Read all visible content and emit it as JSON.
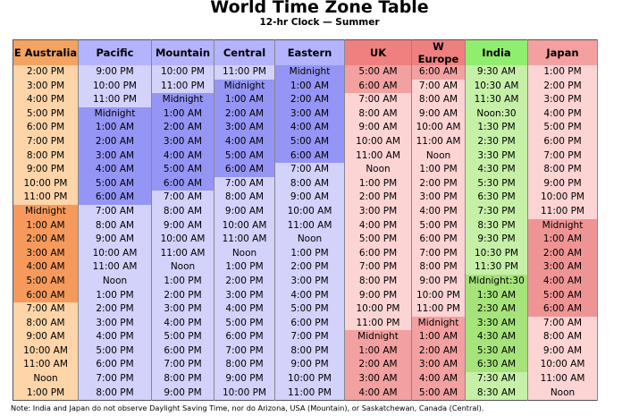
{
  "title": "World Time Zone Table",
  "subtitle": "12-hr Clock — Summer",
  "note": "Note: India and Japan do not observe Daylight Saving Time, nor do Arizona, USA (Mountain), or Saskatchewan, Canada (Central).",
  "colors": {
    "header_aus": "#f4a460",
    "header_us": "#b3b3ff",
    "header_europe": "#f08080",
    "header_india": "#90ee6f",
    "header_japan": "#f4a0a0",
    "aus_light": "#fdd5a8",
    "aus_dark": "#f59a5c",
    "us_light": "#d2d2fb",
    "us_dark": "#9595f5",
    "eu_light": "#fcd4d4",
    "eu_dark": "#f2a0a0",
    "india_light": "#c6f0a8",
    "india_dark": "#a6e37a",
    "japan_light": "#fcd4d4",
    "japan_dark": "#ef9494"
  },
  "columns": [
    {
      "label": "E Australia",
      "group": "aus"
    },
    {
      "label": "Pacific",
      "group": "us"
    },
    {
      "label": "Mountain",
      "group": "us"
    },
    {
      "label": "Central",
      "group": "us"
    },
    {
      "label": "Eastern",
      "group": "us"
    },
    {
      "label": "UK",
      "group": "eu"
    },
    {
      "label": "W Europe",
      "group": "eu"
    },
    {
      "label": "India",
      "group": "india"
    },
    {
      "label": "Japan",
      "group": "japan"
    }
  ],
  "rows": [
    [
      "2:00 PM",
      "9:00 PM",
      "10:00 PM",
      "11:00 PM",
      "Midnight",
      "5:00 AM",
      "6:00 AM",
      "9:30 AM",
      "1:00 PM"
    ],
    [
      "3:00 PM",
      "10:00 PM",
      "11:00 PM",
      "Midnight",
      "1:00 AM",
      "6:00 AM",
      "7:00 AM",
      "10:30 AM",
      "2:00 PM"
    ],
    [
      "4:00 PM",
      "11:00 PM",
      "Midnight",
      "1:00 AM",
      "2:00 AM",
      "7:00 AM",
      "8:00 AM",
      "11:30 AM",
      "3:00 PM"
    ],
    [
      "5:00 PM",
      "Midnight",
      "1:00 AM",
      "2:00 AM",
      "3:00 AM",
      "8:00 AM",
      "9:00 AM",
      "Noon:30",
      "4:00 PM"
    ],
    [
      "6:00 PM",
      "1:00 AM",
      "2:00 AM",
      "3:00 AM",
      "4:00 AM",
      "9:00 AM",
      "10:00 AM",
      "1:30 PM",
      "5:00 PM"
    ],
    [
      "7:00 PM",
      "2:00 AM",
      "3:00 AM",
      "4:00 AM",
      "5:00 AM",
      "10:00 AM",
      "11:00 AM",
      "2:30 PM",
      "6:00 PM"
    ],
    [
      "8:00 PM",
      "3:00 AM",
      "4:00 AM",
      "5:00 AM",
      "6:00 AM",
      "11:00 AM",
      "Noon",
      "3:30 PM",
      "7:00 PM"
    ],
    [
      "9:00 PM",
      "4:00 AM",
      "5:00 AM",
      "6:00 AM",
      "7:00 AM",
      "Noon",
      "1:00 PM",
      "4:30 PM",
      "8:00 PM"
    ],
    [
      "10:00 PM",
      "5:00 AM",
      "6:00 AM",
      "7:00 AM",
      "8:00 AM",
      "1:00 PM",
      "2:00 PM",
      "5:30 PM",
      "9:00 PM"
    ],
    [
      "11:00 PM",
      "6:00 AM",
      "7:00 AM",
      "8:00 AM",
      "9:00 AM",
      "2:00 PM",
      "3:00 PM",
      "6:30 PM",
      "10:00 PM"
    ],
    [
      "Midnight",
      "7:00 AM",
      "8:00 AM",
      "9:00 AM",
      "10:00 AM",
      "3:00 PM",
      "4:00 PM",
      "7:30 PM",
      "11:00 PM"
    ],
    [
      "1:00 AM",
      "8:00 AM",
      "9:00 AM",
      "10:00 AM",
      "11:00 AM",
      "4:00 PM",
      "5:00 PM",
      "8:30 PM",
      "Midnight"
    ],
    [
      "2:00 AM",
      "9:00 AM",
      "10:00 AM",
      "11:00 AM",
      "Noon",
      "5:00 PM",
      "6:00 PM",
      "9:30 PM",
      "1:00 AM"
    ],
    [
      "3:00 AM",
      "10:00 AM",
      "11:00 AM",
      "Noon",
      "1:00 PM",
      "6:00 PM",
      "7:00 PM",
      "10:30 PM",
      "2:00 AM"
    ],
    [
      "4:00 AM",
      "11:00 AM",
      "Noon",
      "1:00 PM",
      "2:00 PM",
      "7:00 PM",
      "8:00 PM",
      "11:30 PM",
      "3:00 AM"
    ],
    [
      "5:00 AM",
      "Noon",
      "1:00 PM",
      "2:00 PM",
      "3:00 PM",
      "8:00 PM",
      "9:00 PM",
      "Midnight:30",
      "4:00 AM"
    ],
    [
      "6:00 AM",
      "1:00 PM",
      "2:00 PM",
      "3:00 PM",
      "4:00 PM",
      "9:00 PM",
      "10:00 PM",
      "1:30 AM",
      "5:00 AM"
    ],
    [
      "7:00 AM",
      "2:00 PM",
      "3:00 PM",
      "4:00 PM",
      "5:00 PM",
      "10:00 PM",
      "11:00 PM",
      "2:30 AM",
      "6:00 AM"
    ],
    [
      "8:00 AM",
      "3:00 PM",
      "4:00 PM",
      "5:00 PM",
      "6:00 PM",
      "11:00 PM",
      "Midnight",
      "3:30 AM",
      "7:00 AM"
    ],
    [
      "9:00 AM",
      "4:00 PM",
      "5:00 PM",
      "6:00 PM",
      "7:00 PM",
      "Midnight",
      "1:00 AM",
      "4:30 AM",
      "8:00 AM"
    ],
    [
      "10:00 AM",
      "5:00 PM",
      "6:00 PM",
      "7:00 PM",
      "8:00 PM",
      "1:00 AM",
      "2:00 AM",
      "5:30 AM",
      "9:00 AM"
    ],
    [
      "11:00 AM",
      "6:00 PM",
      "7:00 PM",
      "8:00 PM",
      "9:00 PM",
      "2:00 AM",
      "3:00 AM",
      "6:30 AM",
      "10:00 AM"
    ],
    [
      "Noon",
      "7:00 PM",
      "8:00 PM",
      "9:00 PM",
      "10:00 PM",
      "3:00 AM",
      "4:00 AM",
      "7:30 AM",
      "11:00 AM"
    ],
    [
      "1:00 PM",
      "8:00 PM",
      "9:00 PM",
      "10:00 PM",
      "11:00 PM",
      "4:00 AM",
      "5:00 AM",
      "8:30 AM",
      "Noon"
    ]
  ]
}
